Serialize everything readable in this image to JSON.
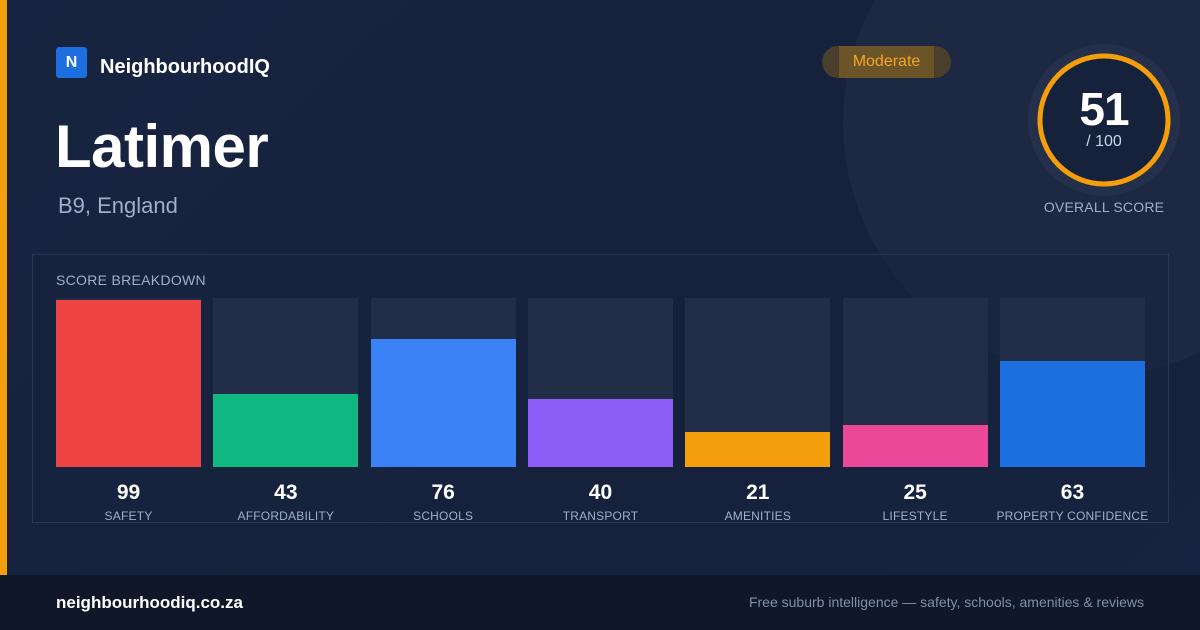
{
  "brand": {
    "mark": "N",
    "name": "NeighbourhoodIQ"
  },
  "suburb": {
    "name": "Latimer",
    "location": "B9, England"
  },
  "badge": {
    "label": "Moderate"
  },
  "overall": {
    "score": "51",
    "max_label": "/ 100",
    "value": 51,
    "max": 100,
    "caption": "OVERALL SCORE",
    "ring_color": "#f59e0b"
  },
  "breakdown": {
    "title": "SCORE BREAKDOWN",
    "max": 100,
    "items": [
      {
        "label": "SAFETY",
        "value": 99,
        "color": "#ef4444"
      },
      {
        "label": "AFFORDABILITY",
        "value": 43,
        "color": "#10b981"
      },
      {
        "label": "SCHOOLS",
        "value": 76,
        "color": "#3b82f6"
      },
      {
        "label": "TRANSPORT",
        "value": 40,
        "color": "#8b5cf6"
      },
      {
        "label": "AMENITIES",
        "value": 21,
        "color": "#f59e0b"
      },
      {
        "label": "LIFESTYLE",
        "value": 25,
        "color": "#ec4899"
      },
      {
        "label": "PROPERTY CONFIDENCE",
        "value": 63,
        "color": "#1d6fe0"
      }
    ]
  },
  "footer": {
    "url": "neighbourhoodiq.co.za",
    "tagline": "Free suburb intelligence — safety, schools, amenities & reviews"
  },
  "colors": {
    "accent": "#f59e0b",
    "background": "#16213b",
    "brand": "#1d6fe0"
  }
}
